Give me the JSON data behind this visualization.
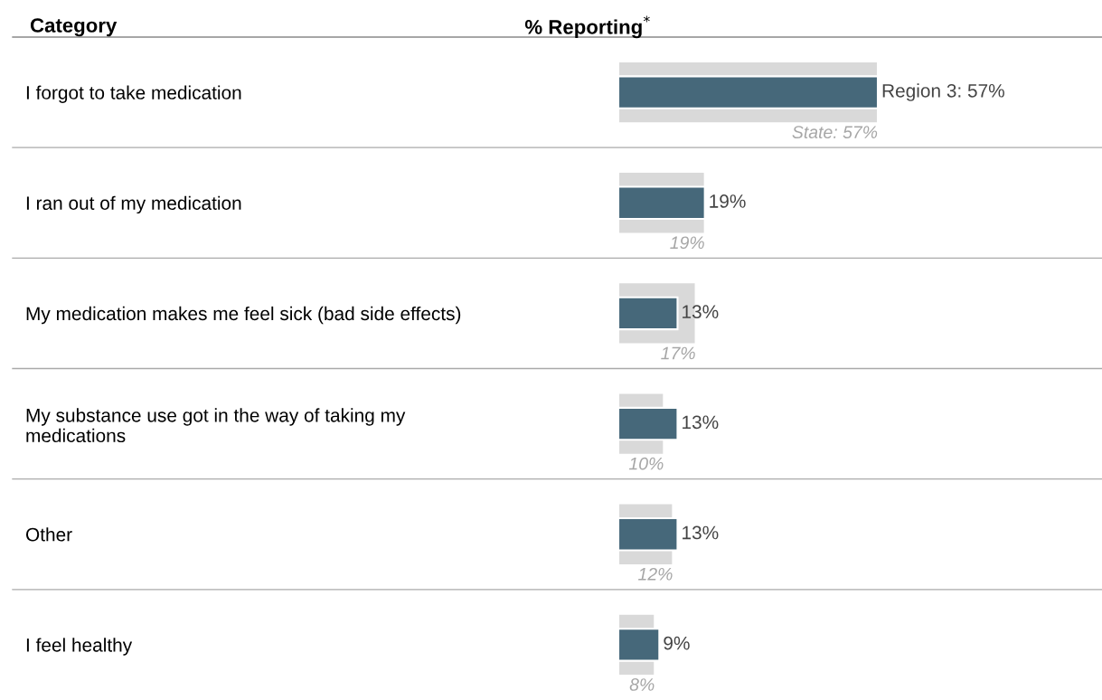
{
  "chart_data": {
    "type": "bar",
    "orientation": "horizontal",
    "xlabel": "% Reporting$^{*}$",
    "ylabel": "Category",
    "categories": [
      "I forgot to take medication",
      "I ran out of my medication",
      "My medication makes me feel sick (bad side effects)",
      "My substance use got in the way of taking my\nmedications",
      "Other",
      "I feel healthy"
    ],
    "series": [
      {
        "color": "#d9d9d9",
        "values": [
          57,
          19,
          17,
          10,
          12,
          8
        ],
        "value_labels": [
          "State: 57%",
          "19%",
          "17%",
          "10%",
          "12%",
          "8%"
        ]
      },
      {
        "color": "#46687a",
        "values": [
          57,
          19,
          13,
          13,
          13,
          9
        ],
        "value_labels": [
          "Region 3: 57%",
          "19%",
          "13%",
          "13%",
          "13%",
          "9%"
        ]
      }
    ],
    "legend": false,
    "grid": false
  }
}
